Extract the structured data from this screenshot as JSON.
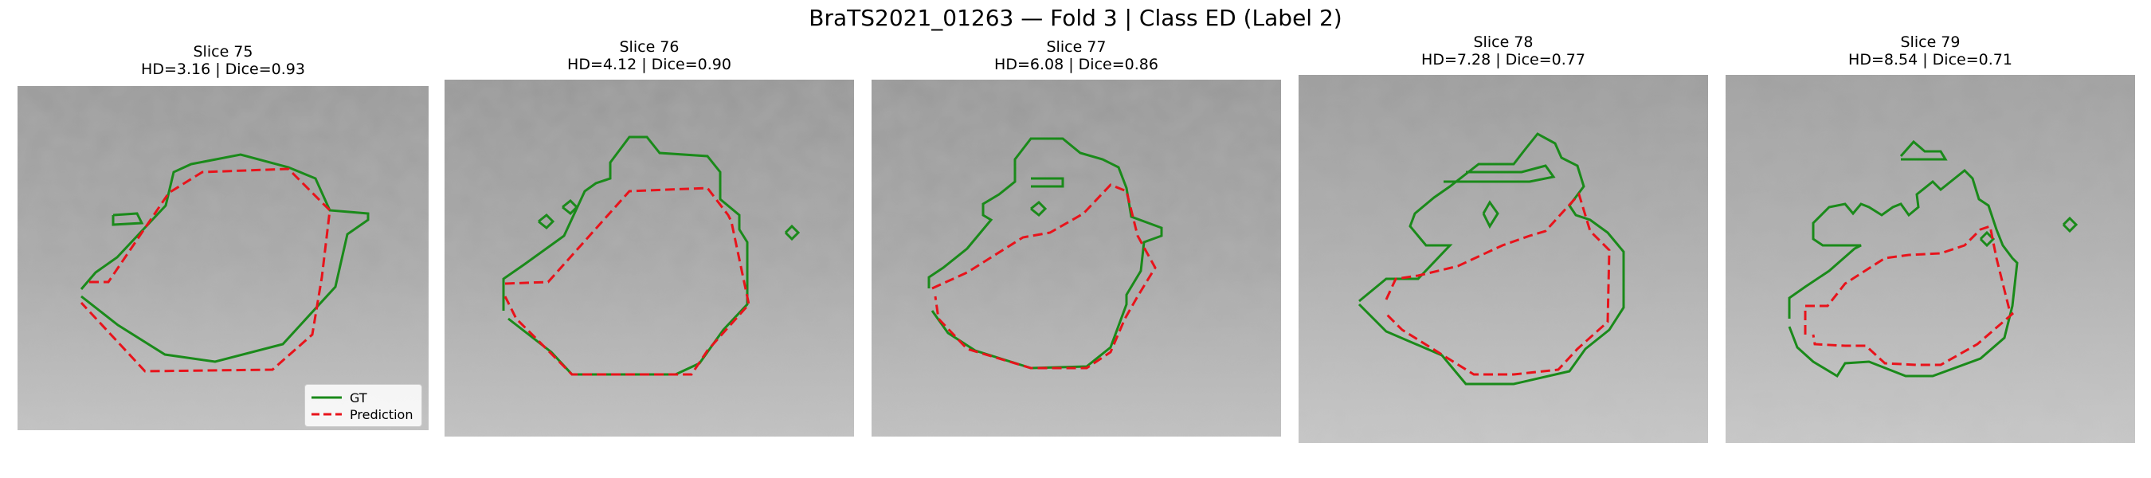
{
  "figure": {
    "suptitle": "BraTS2021_01263 — Fold 3 | Class ED (Label 2)"
  },
  "panels": [
    {
      "slice": "Slice 75",
      "metrics": "HD=3.16 | Dice=0.93",
      "hd": 3.16,
      "dice": 0.93
    },
    {
      "slice": "Slice 76",
      "metrics": "HD=4.12 | Dice=0.90",
      "hd": 4.12,
      "dice": 0.9
    },
    {
      "slice": "Slice 77",
      "metrics": "HD=6.08 | Dice=0.86",
      "hd": 6.08,
      "dice": 0.86
    },
    {
      "slice": "Slice 78",
      "metrics": "HD=7.28 | Dice=0.77",
      "hd": 7.28,
      "dice": 0.77
    },
    {
      "slice": "Slice 79",
      "metrics": "HD=8.54 | Dice=0.71",
      "hd": 8.54,
      "dice": 0.71
    }
  ],
  "legend": {
    "gt_label": "GT",
    "pred_label": "Prediction"
  },
  "colors": {
    "gt": "#1a8a1a",
    "prediction": "#e8131b"
  }
}
